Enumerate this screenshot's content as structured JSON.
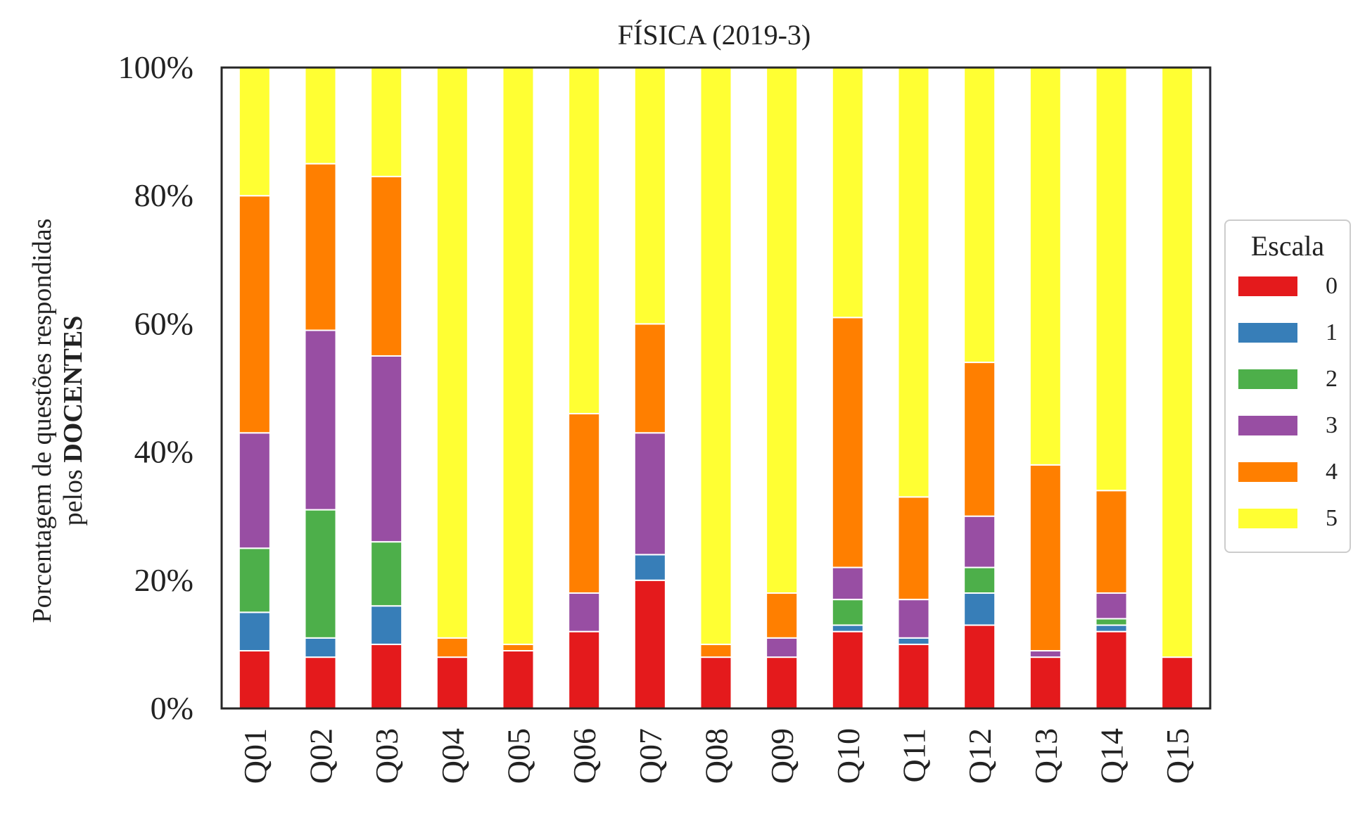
{
  "chart_data": {
    "type": "bar",
    "stacked": true,
    "title": "FÍSICA (2019-3)",
    "ylabel_line1": "Porcentagem de questões respondidas",
    "ylabel_line2_prefix": "pelos ",
    "ylabel_line2_bold": "DOCENTES",
    "xlabel": "",
    "ylim": [
      0,
      100
    ],
    "yticks": [
      "0%",
      "20%",
      "40%",
      "60%",
      "80%",
      "100%"
    ],
    "categories": [
      "Q01",
      "Q02",
      "Q03",
      "Q04",
      "Q05",
      "Q06",
      "Q07",
      "Q08",
      "Q09",
      "Q10",
      "Q11",
      "Q12",
      "Q13",
      "Q14",
      "Q15"
    ],
    "legend_title": "Escala",
    "legend_position": "center-right",
    "grid": false,
    "series": [
      {
        "name": "0",
        "color": "#e41a1c",
        "values": [
          9,
          8,
          10,
          8,
          9,
          12,
          20,
          8,
          8,
          12,
          10,
          13,
          8,
          12,
          8
        ]
      },
      {
        "name": "1",
        "color": "#377eb8",
        "values": [
          6,
          3,
          6,
          0,
          0,
          0,
          4,
          0,
          0,
          1,
          1,
          5,
          0,
          1,
          0
        ]
      },
      {
        "name": "2",
        "color": "#4daf4a",
        "values": [
          10,
          20,
          10,
          0,
          0,
          0,
          0,
          0,
          0,
          4,
          0,
          4,
          0,
          1,
          0
        ]
      },
      {
        "name": "3",
        "color": "#984ea3",
        "values": [
          18,
          28,
          29,
          0,
          0,
          6,
          19,
          0,
          3,
          5,
          6,
          8,
          1,
          4,
          0
        ]
      },
      {
        "name": "4",
        "color": "#ff7f00",
        "values": [
          37,
          26,
          28,
          3,
          1,
          28,
          17,
          2,
          7,
          39,
          16,
          24,
          29,
          16,
          0
        ]
      },
      {
        "name": "5",
        "color": "#ffff33",
        "values": [
          20,
          15,
          17,
          89,
          90,
          54,
          40,
          90,
          82,
          39,
          67,
          46,
          62,
          66,
          92
        ]
      }
    ]
  }
}
